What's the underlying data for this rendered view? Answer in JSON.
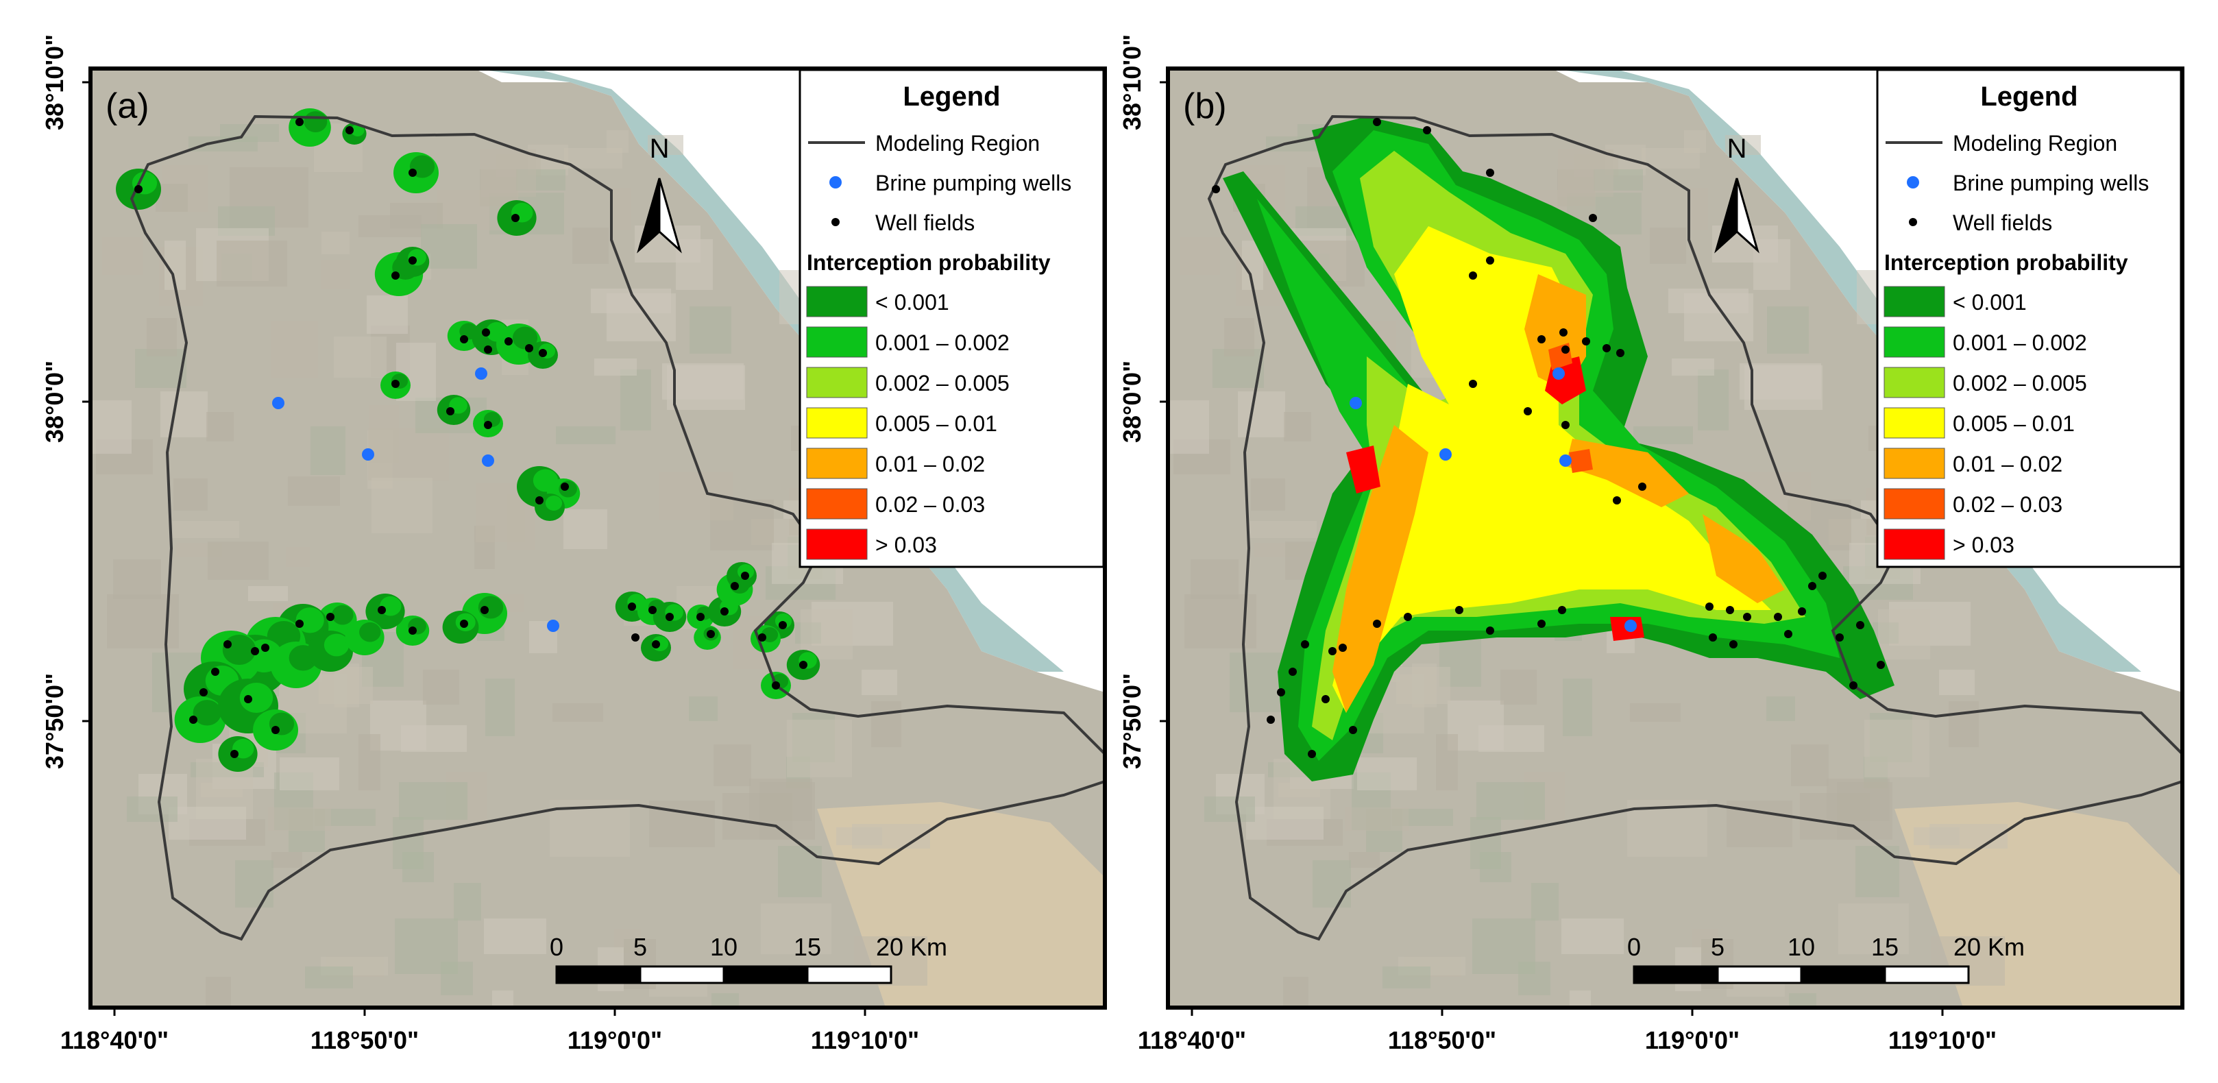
{
  "panels": [
    {
      "label": "(a)",
      "variant": "a",
      "legend": {
        "title": "Legend",
        "boundary_label": "Modeling Region",
        "pumping_label": "Brine pumping wells",
        "wellfield_label": "Well fields",
        "section_title": "Interception probability",
        "classes": [
          {
            "label": "< 0.001",
            "color": "#0a9a14"
          },
          {
            "label": "0.001 – 0.002",
            "color": "#0cc21a"
          },
          {
            "label": "0.002 – 0.005",
            "color": "#9be21c"
          },
          {
            "label": "0.005 – 0.01",
            "color": "#ffff00"
          },
          {
            "label": "0.01 – 0.02",
            "color": "#ffaa00"
          },
          {
            "label": "0.02 – 0.03",
            "color": "#ff5500"
          },
          {
            "label": "> 0.03",
            "color": "#ff0000"
          }
        ]
      },
      "north_label": "N",
      "scale": {
        "ticks": [
          "0",
          "5",
          "10",
          "15",
          "20 Km"
        ]
      },
      "x_ticks": [
        "118°40'0\"",
        "118°50'0\"",
        "119°0'0\"",
        "119°10'0\""
      ],
      "y_ticks": [
        "38°10'0\"",
        "38°0'0\"",
        "37°50'0\""
      ]
    },
    {
      "label": "(b)",
      "variant": "b",
      "legend": {
        "title": "Legend",
        "boundary_label": "Modeling Region",
        "pumping_label": "Brine pumping wells",
        "wellfield_label": "Well fields",
        "section_title": "Interception probability",
        "classes": [
          {
            "label": "< 0.001",
            "color": "#0a9a14"
          },
          {
            "label": "0.001 – 0.002",
            "color": "#0cc21a"
          },
          {
            "label": "0.002 – 0.005",
            "color": "#9be21c"
          },
          {
            "label": "0.005 – 0.01",
            "color": "#ffff00"
          },
          {
            "label": "0.01 – 0.02",
            "color": "#ffaa00"
          },
          {
            "label": "0.02 – 0.03",
            "color": "#ff5500"
          },
          {
            "label": "> 0.03",
            "color": "#ff0000"
          }
        ]
      },
      "north_label": "N",
      "scale": {
        "ticks": [
          "0",
          "5",
          "10",
          "15",
          "20 Km"
        ]
      },
      "x_ticks": [
        "118°40'0\"",
        "118°50'0\"",
        "119°0'0\"",
        "119°10'0\""
      ],
      "y_ticks": [
        "38°10'0\"",
        "38°0'0\"",
        "37°50'0\""
      ]
    }
  ],
  "colors": {
    "boundary": "#3a3a3a",
    "pumping_well": "#1e6fff",
    "well_field": "#000000",
    "imagery_land": "#a9a290",
    "imagery_sea": "#8fb8b4"
  }
}
